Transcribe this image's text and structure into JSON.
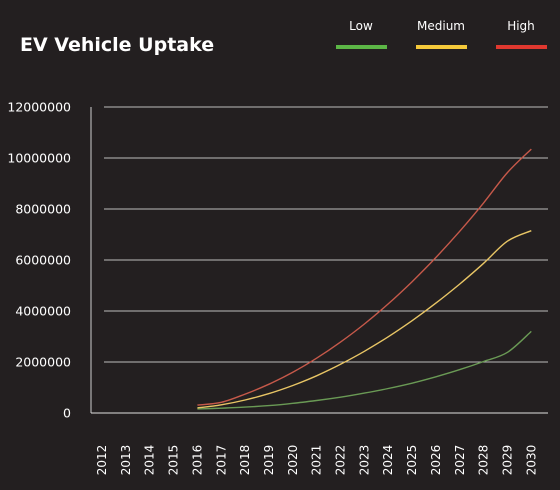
{
  "chart_data": {
    "type": "line",
    "title": "EV Vehicle Uptake",
    "xlabel": "",
    "ylabel": "",
    "categories": [
      "2012",
      "2013",
      "2014",
      "2015",
      "2016",
      "2017",
      "2018",
      "2019",
      "2020",
      "2021",
      "2022",
      "2023",
      "2024",
      "2025",
      "2026",
      "2027",
      "2028",
      "2029",
      "2030"
    ],
    "ylim": [
      0,
      12000000
    ],
    "yticks": [
      "0",
      "2000000",
      "4000000",
      "6000000",
      "8000000",
      "10000000",
      "12000000"
    ],
    "grid": true,
    "legend_position": "top-right",
    "series": [
      {
        "name": "Low",
        "color": "#5cb646",
        "line_color": "#6a9a55",
        "values": [
          null,
          null,
          null,
          null,
          160000,
          190000,
          230000,
          290000,
          380000,
          490000,
          620000,
          780000,
          960000,
          1170000,
          1420000,
          1700000,
          2020000,
          2380000,
          3200000
        ]
      },
      {
        "name": "Medium",
        "color": "#f5c93a",
        "line_color": "#e8c565",
        "values": [
          null,
          null,
          null,
          null,
          200000,
          320000,
          510000,
          760000,
          1080000,
          1460000,
          1910000,
          2420000,
          2990000,
          3620000,
          4310000,
          5060000,
          5870000,
          6740000,
          7150000
        ]
      },
      {
        "name": "High",
        "color": "#e0382f",
        "line_color": "#c6594a",
        "values": [
          null,
          null,
          null,
          null,
          310000,
          420000,
          740000,
          1130000,
          1600000,
          2150000,
          2780000,
          3490000,
          4280000,
          5150000,
          6100000,
          7130000,
          8240000,
          9430000,
          10350000
        ]
      }
    ]
  }
}
